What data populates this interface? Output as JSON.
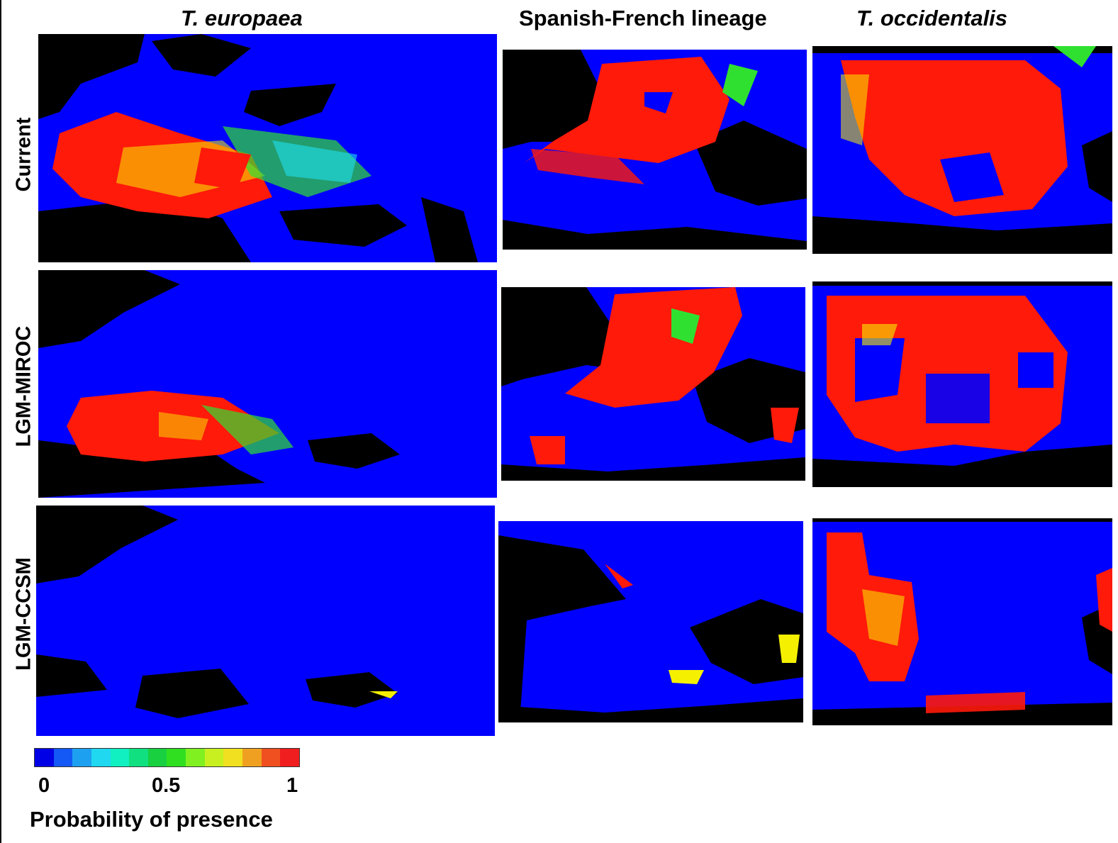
{
  "columns": [
    {
      "title": "T. europaea",
      "italic": true
    },
    {
      "title": "Spanish-French lineage",
      "italic": false
    },
    {
      "title": "T. occidentalis",
      "italic": true
    }
  ],
  "rows": [
    {
      "label": "Current"
    },
    {
      "label": "LGM-MIROC"
    },
    {
      "label": "LGM-CCSM"
    }
  ],
  "panel_descriptions": [
    [
      "high probability across western and central Europe",
      "high probability across France and northern Iberia",
      "high probability across most of central Iberia"
    ],
    [
      "high probability restricted to southern Europe",
      "high probability in southern France and northeastern Iberia",
      "high probability across central and eastern Iberia"
    ],
    [
      "near-zero probability nearly everywhere",
      "near-zero probability with small scattered patches",
      "high probability in western Iberia and southern coast"
    ]
  ],
  "legend": {
    "title": "Probability of presence",
    "ticks": [
      "0",
      "0.5",
      "1"
    ],
    "scale_colors": [
      "#0000e6",
      "#1458f5",
      "#1ea0f0",
      "#20d8f0",
      "#10f0c0",
      "#10e080",
      "#18d040",
      "#30e020",
      "#80f020",
      "#c8f020",
      "#f0e020",
      "#f0a020",
      "#f05020",
      "#f01e1e"
    ]
  },
  "colors": {
    "land_low": "#0000fe",
    "sea": "#000000",
    "high": "#ff1a0a",
    "mid": "#f5f000",
    "lowmid": "#30e030",
    "cyan": "#20e0f0"
  }
}
